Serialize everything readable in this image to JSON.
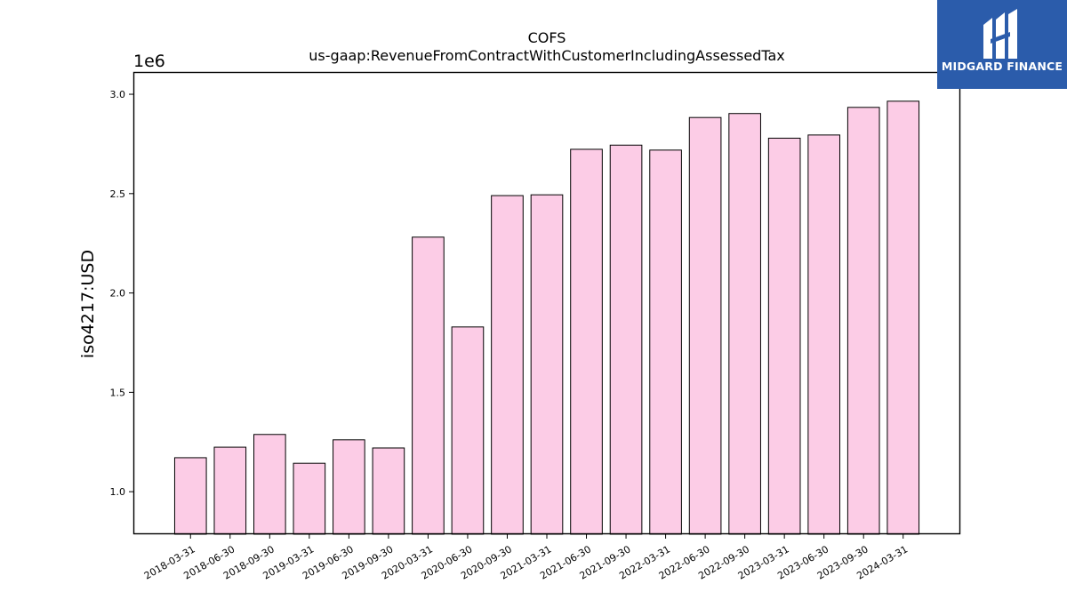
{
  "chart_data": {
    "type": "bar",
    "title": "COFS",
    "subtitle": "us-gaap:RevenueFromContractWithCustomerIncludingAssessedTax",
    "xlabel": "",
    "ylabel": "iso4217:USD",
    "scale_label": "1e6",
    "categories": [
      "2018-03-31",
      "2018-06-30",
      "2018-09-30",
      "2019-03-31",
      "2019-06-30",
      "2019-09-30",
      "2020-03-31",
      "2020-06-30",
      "2020-09-30",
      "2021-03-31",
      "2021-06-30",
      "2021-09-30",
      "2022-03-31",
      "2022-06-30",
      "2022-09-30",
      "2023-03-31",
      "2023-06-30",
      "2023-09-30",
      "2024-03-31"
    ],
    "values": [
      1171000,
      1224000,
      1288000,
      1143000,
      1261000,
      1220000,
      2281000,
      1829000,
      2490000,
      2494000,
      2723000,
      2744000,
      2719000,
      2883000,
      2903000,
      2779000,
      2795000,
      2934000,
      2965000
    ],
    "ylim": [
      786000,
      3112000
    ],
    "yticks": [
      1000000,
      1500000,
      2000000,
      2500000,
      3000000
    ],
    "ytick_labels": [
      "1.0",
      "1.5",
      "2.0",
      "2.5",
      "3.0"
    ],
    "grid": false,
    "bar_color": "#fccce6",
    "edge_color": "#000000"
  },
  "logo": {
    "text": "MIDGARD FINANCE",
    "background": "#2b5cab"
  }
}
